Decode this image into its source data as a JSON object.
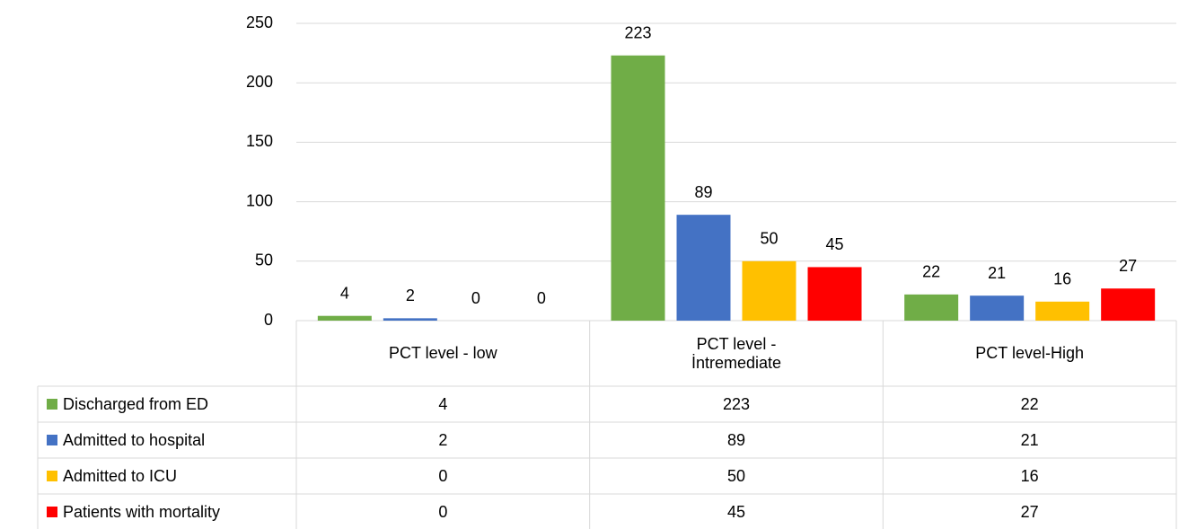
{
  "chart_data": {
    "type": "bar",
    "categories": [
      "PCT level - low",
      "PCT level - İntremediate",
      "PCT level-High"
    ],
    "series": [
      {
        "name": "Discharged from ED",
        "color": "#70ad47",
        "values": [
          4,
          223,
          22
        ]
      },
      {
        "name": "Admitted to hospital",
        "color": "#4472c4",
        "values": [
          2,
          89,
          21
        ]
      },
      {
        "name": "Admitted to ICU",
        "color": "#ffc000",
        "values": [
          0,
          50,
          16
        ]
      },
      {
        "name": "Patients with mortality",
        "color": "#ff0000",
        "values": [
          0,
          45,
          27
        ]
      }
    ],
    "ylim": [
      0,
      250
    ],
    "yticks": [
      0,
      50,
      100,
      150,
      200,
      250
    ],
    "grid": true
  }
}
